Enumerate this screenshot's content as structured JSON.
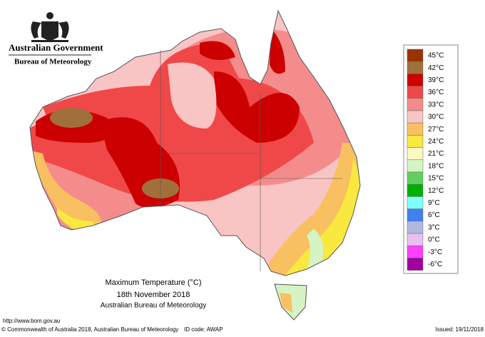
{
  "header": {
    "org": "Australian Government",
    "dept": "Bureau of Meteorology"
  },
  "map": {
    "title": "Maximum Temperature (°C)",
    "date": "18th November 2018",
    "source": "Australian Bureau of Meteorology"
  },
  "legend": [
    {
      "label": "45°C",
      "color": "#993300"
    },
    {
      "label": "42°C",
      "color": "#a0703a"
    },
    {
      "label": "39°C",
      "color": "#cc0000"
    },
    {
      "label": "36°C",
      "color": "#f04848"
    },
    {
      "label": "33°C",
      "color": "#f48c8c"
    },
    {
      "label": "30°C",
      "color": "#f9c4c4"
    },
    {
      "label": "27°C",
      "color": "#f8c060"
    },
    {
      "label": "24°C",
      "color": "#f8e840"
    },
    {
      "label": "21°C",
      "color": "#fbf8c4"
    },
    {
      "label": "18°C",
      "color": "#d4f4c4"
    },
    {
      "label": "15°C",
      "color": "#60d060"
    },
    {
      "label": "12°C",
      "color": "#00b000"
    },
    {
      "label": "9°C",
      "color": "#80ffff"
    },
    {
      "label": "6°C",
      "color": "#4080f0"
    },
    {
      "label": "3°C",
      "color": "#b0b8e0"
    },
    {
      "label": "0°C",
      "color": "#e8c0f0"
    },
    {
      "label": "-3°C",
      "color": "#ff40ff"
    },
    {
      "label": "-6°C",
      "color": "#a000a0"
    }
  ],
  "footer": {
    "url": "http://www.bom.gov.au",
    "copyright": "© Commonwealth of Australia 2018, Australian Bureau of Meteorology",
    "id": "ID code: AWAP",
    "issued": "Issued: 19/11/2018"
  }
}
